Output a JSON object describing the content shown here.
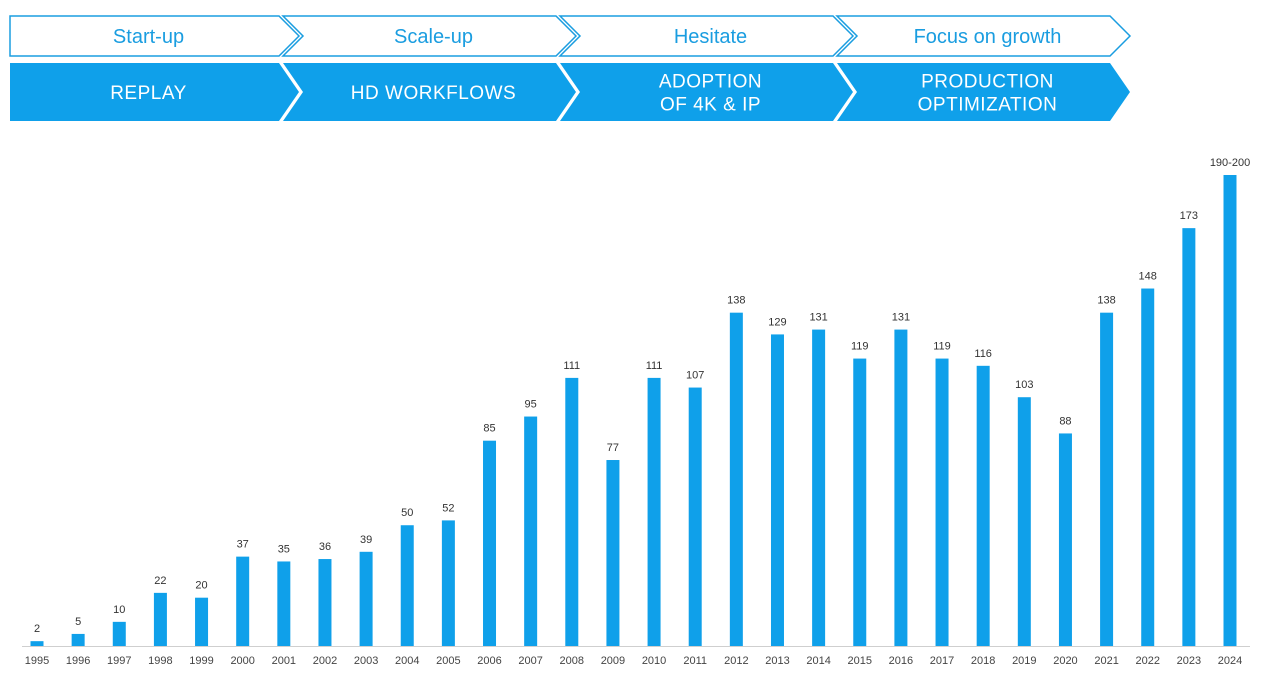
{
  "phases": [
    {
      "title": "Start-up",
      "theme": [
        "REPLAY"
      ]
    },
    {
      "title": "Scale-up",
      "theme": [
        "HD WORKFLOWS"
      ]
    },
    {
      "title": "Hesitate",
      "theme": [
        "ADOPTION",
        "OF 4K & IP"
      ]
    },
    {
      "title": "Focus on growth",
      "theme": [
        "PRODUCTION",
        "OPTIMIZATION"
      ]
    }
  ],
  "colors": {
    "accent": "#0fa0ea",
    "outline": "#1a9de0",
    "text": "#333333"
  },
  "chart_data": {
    "type": "bar",
    "title": "",
    "xlabel": "",
    "ylabel": "",
    "categories": [
      "1995",
      "1996",
      "1997",
      "1998",
      "1999",
      "2000",
      "2001",
      "2002",
      "2003",
      "2004",
      "2005",
      "2006",
      "2007",
      "2008",
      "2009",
      "2010",
      "2011",
      "2012",
      "2013",
      "2014",
      "2015",
      "2016",
      "2017",
      "2018",
      "2019",
      "2020",
      "2021",
      "2022",
      "2023",
      "2024"
    ],
    "values": [
      2,
      5,
      10,
      22,
      20,
      37,
      35,
      36,
      39,
      50,
      52,
      85,
      95,
      111,
      77,
      111,
      107,
      138,
      129,
      131,
      119,
      131,
      119,
      116,
      103,
      88,
      138,
      148,
      173,
      195
    ],
    "labels": [
      "2",
      "5",
      "10",
      "22",
      "20",
      "37",
      "35",
      "36",
      "39",
      "50",
      "52",
      "85",
      "95",
      "111",
      "77",
      "111",
      "107",
      "138",
      "129",
      "131",
      "119",
      "131",
      "119",
      "116",
      "103",
      "88",
      "138",
      "148",
      "173",
      "190-200"
    ],
    "ylim": [
      0,
      200
    ],
    "grid": false,
    "legend": "none"
  }
}
